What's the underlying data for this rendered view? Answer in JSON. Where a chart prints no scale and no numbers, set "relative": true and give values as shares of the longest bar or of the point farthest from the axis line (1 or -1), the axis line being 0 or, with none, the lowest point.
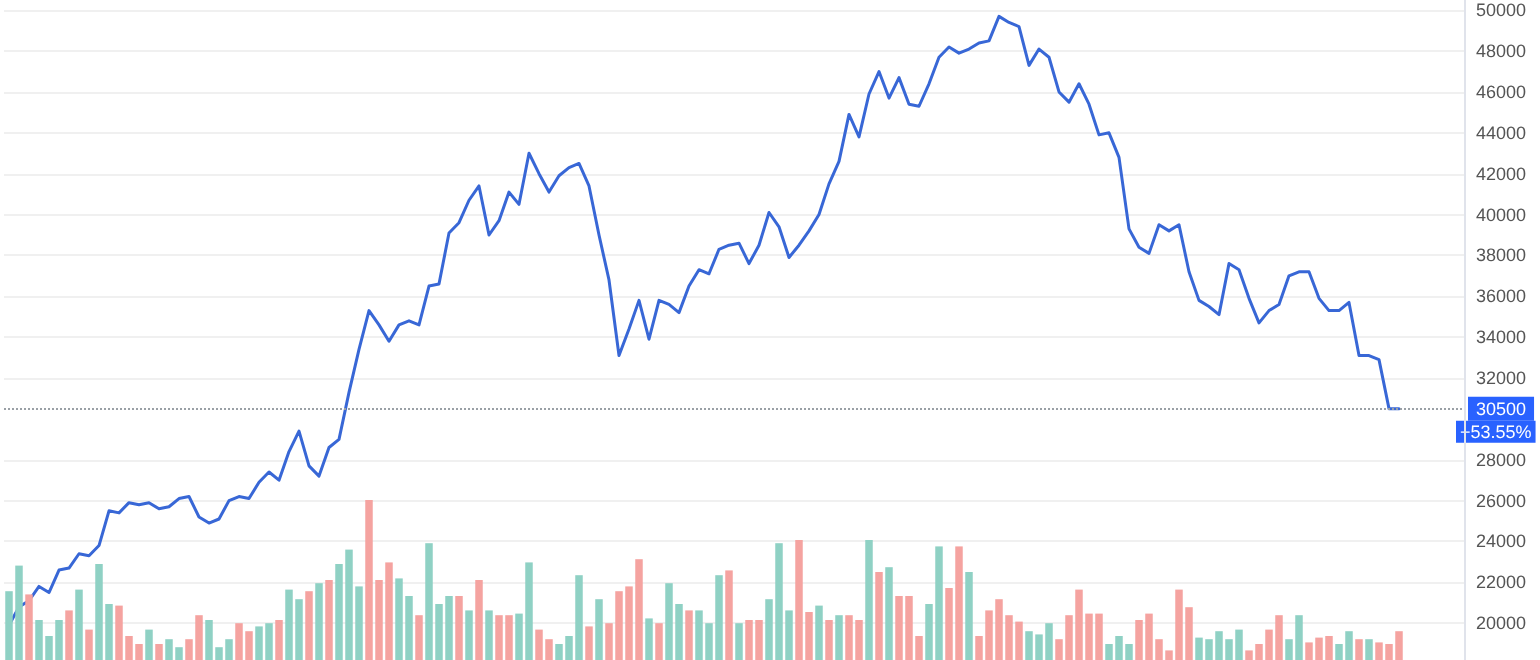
{
  "chart_data": [
    {
      "type": "line",
      "categories": [
        null,
        null,
        null,
        null,
        null,
        null,
        null,
        null,
        null,
        null,
        null,
        null,
        null,
        null,
        null,
        null,
        null,
        null,
        null,
        null,
        null,
        null,
        null,
        null,
        null,
        null,
        null,
        null,
        null,
        null,
        null,
        null,
        null,
        null,
        null,
        null,
        null,
        null,
        null,
        null,
        null,
        null,
        null,
        null,
        null,
        null,
        null,
        null,
        null,
        null,
        null,
        null,
        null,
        null,
        null,
        null,
        null,
        null,
        null,
        null,
        null,
        null,
        null,
        null,
        null,
        null,
        null,
        null,
        null,
        null,
        null,
        null,
        null,
        null,
        null,
        null,
        null,
        null,
        null,
        null,
        null,
        null,
        null,
        null,
        null,
        null,
        null,
        null,
        null,
        null,
        null,
        null,
        null,
        null,
        null,
        null,
        null,
        null,
        null,
        null,
        null,
        null,
        null,
        null,
        null,
        null,
        null,
        null,
        null,
        null,
        null,
        null,
        null,
        null,
        null,
        null,
        null,
        null,
        null,
        null,
        null,
        null,
        null,
        null,
        null,
        null,
        null,
        null,
        null,
        null,
        null,
        null,
        null,
        null,
        null,
        null,
        null,
        null,
        null,
        null,
        null,
        null,
        null,
        null,
        null,
        null
      ],
      "series": [
        {
          "color": "#3867d6",
          "values": [
            19900,
            20800,
            21100,
            21800,
            21500,
            22600,
            22700,
            23400,
            23300,
            23800,
            25500,
            25400,
            25900,
            25800,
            25900,
            25600,
            25700,
            26100,
            26200,
            25200,
            24900,
            25100,
            26000,
            26200,
            26100,
            26900,
            27400,
            27000,
            28400,
            29400,
            27700,
            27200,
            28600,
            29000,
            31300,
            33400,
            35300,
            34600,
            33800,
            34600,
            34800,
            34600,
            36500,
            36600,
            39100,
            39600,
            40700,
            41400,
            39000,
            39700,
            41100,
            40500,
            43000,
            42000,
            41100,
            41900,
            42300,
            42500,
            41400,
            39000,
            36800,
            33100,
            34400,
            35800,
            33900,
            35800,
            35600,
            35200,
            36500,
            37300,
            37100,
            38300,
            38500,
            38600,
            37600,
            38500,
            40100,
            39400,
            37900,
            38500,
            39200,
            40000,
            41500,
            42600,
            44900,
            43800,
            45900,
            47000,
            45700,
            46700,
            45400,
            45300,
            46400,
            47700,
            48200,
            47900,
            48100,
            48400,
            48500,
            49700,
            49400,
            49200,
            47300,
            48100,
            47700,
            46000,
            45500,
            46400,
            45400,
            43900,
            44000,
            42800,
            39300,
            38400,
            38100,
            39500,
            39200,
            39500,
            37200,
            35800,
            35500,
            35100,
            37600,
            37300,
            35900,
            34700,
            35300,
            35600,
            37000,
            37200,
            37200,
            35900,
            35300,
            35300,
            35700,
            33100,
            33100,
            32900,
            30500,
            30500,
            null,
            null,
            null,
            null,
            null,
            null
          ]
        }
      ],
      "ylim": [
        18200,
        50500
      ],
      "yticks": [
        20000,
        22000,
        24000,
        26000,
        28000,
        32000,
        34000,
        36000,
        38000,
        40000,
        42000,
        44000,
        46000,
        48000,
        50000
      ],
      "grid": "y",
      "line_style": "solid",
      "ref_lines": [
        {
          "axis": "y",
          "value": 30500,
          "label": "30500",
          "color": "#9aa0a6",
          "line_style": "dotted"
        }
      ],
      "annotations": [
        "+53.55%"
      ]
    },
    {
      "type": "bar",
      "relative": true,
      "categories": [
        null,
        null,
        null,
        null,
        null,
        null,
        null,
        null,
        null,
        null,
        null,
        null,
        null,
        null,
        null,
        null,
        null,
        null,
        null,
        null,
        null,
        null,
        null,
        null,
        null,
        null,
        null,
        null,
        null,
        null,
        null,
        null,
        null,
        null,
        null,
        null,
        null,
        null,
        null,
        null,
        null,
        null,
        null,
        null,
        null,
        null,
        null,
        null,
        null,
        null,
        null,
        null,
        null,
        null,
        null,
        null,
        null,
        null,
        null,
        null,
        null,
        null,
        null,
        null,
        null,
        null,
        null,
        null,
        null,
        null,
        null,
        null,
        null,
        null,
        null,
        null,
        null,
        null,
        null,
        null,
        null,
        null,
        null,
        null,
        null,
        null,
        null,
        null,
        null,
        null,
        null,
        null,
        null,
        null,
        null,
        null,
        null,
        null,
        null,
        null,
        null,
        null,
        null,
        null,
        null,
        null,
        null,
        null,
        null,
        null,
        null,
        null,
        null,
        null,
        null,
        null,
        null,
        null,
        null,
        null,
        null,
        null,
        null,
        null,
        null,
        null,
        null,
        null,
        null,
        null,
        null,
        null,
        null,
        null,
        null,
        null,
        null,
        null,
        null,
        null,
        null,
        null,
        null,
        null,
        null,
        null
      ],
      "colors": [
        "#8fd1c4",
        "#8fd1c4",
        "#f5a3a0",
        "#8fd1c4",
        "#8fd1c4",
        "#8fd1c4",
        "#f5a3a0",
        "#8fd1c4",
        "#f5a3a0",
        "#8fd1c4",
        "#8fd1c4",
        "#f5a3a0",
        "#f5a3a0",
        "#f5a3a0",
        "#8fd1c4",
        "#f5a3a0",
        "#8fd1c4",
        "#8fd1c4",
        "#f5a3a0",
        "#f5a3a0",
        "#8fd1c4",
        "#8fd1c4",
        "#8fd1c4",
        "#f5a3a0",
        "#f5a3a0",
        "#8fd1c4",
        "#8fd1c4",
        "#f5a3a0",
        "#8fd1c4",
        "#8fd1c4",
        "#f5a3a0",
        "#8fd1c4",
        "#f5a3a0",
        "#8fd1c4",
        "#8fd1c4",
        "#8fd1c4",
        "#f5a3a0",
        "#f5a3a0",
        "#f5a3a0",
        "#8fd1c4",
        "#8fd1c4",
        "#f5a3a0",
        "#8fd1c4",
        "#8fd1c4",
        "#8fd1c4",
        "#f5a3a0",
        "#8fd1c4",
        "#f5a3a0",
        "#8fd1c4",
        "#f5a3a0",
        "#f5a3a0",
        "#8fd1c4",
        "#8fd1c4",
        "#f5a3a0",
        "#f5a3a0",
        "#8fd1c4",
        "#8fd1c4",
        "#8fd1c4",
        "#f5a3a0",
        "#8fd1c4",
        "#f5a3a0",
        "#f5a3a0",
        "#f5a3a0",
        "#f5a3a0",
        "#8fd1c4",
        "#f5a3a0",
        "#8fd1c4",
        "#8fd1c4",
        "#f5a3a0",
        "#8fd1c4",
        "#8fd1c4",
        "#8fd1c4",
        "#f5a3a0",
        "#8fd1c4",
        "#f5a3a0",
        "#f5a3a0",
        "#8fd1c4",
        "#8fd1c4",
        "#8fd1c4",
        "#f5a3a0",
        "#f5a3a0",
        "#8fd1c4",
        "#f5a3a0",
        "#8fd1c4",
        "#f5a3a0",
        "#f5a3a0",
        "#8fd1c4",
        "#f5a3a0",
        "#8fd1c4",
        "#f5a3a0",
        "#f5a3a0",
        "#f5a3a0",
        "#8fd1c4",
        "#8fd1c4",
        "#f5a3a0",
        "#f5a3a0",
        "#8fd1c4",
        "#f5a3a0",
        "#f5a3a0",
        "#f5a3a0",
        "#f5a3a0",
        "#f5a3a0",
        "#8fd1c4",
        "#8fd1c4",
        "#8fd1c4",
        "#f5a3a0",
        "#f5a3a0",
        "#f5a3a0",
        "#f5a3a0",
        "#f5a3a0",
        "#8fd1c4",
        "#8fd1c4",
        "#8fd1c4",
        "#f5a3a0",
        "#f5a3a0",
        "#f5a3a0",
        "#f5a3a0",
        "#f5a3a0",
        "#f5a3a0",
        "#8fd1c4",
        "#8fd1c4",
        "#8fd1c4",
        "#8fd1c4",
        "#8fd1c4",
        "#f5a3a0",
        "#f5a3a0",
        "#f5a3a0",
        "#f5a3a0",
        "#8fd1c4",
        "#8fd1c4",
        "#f5a3a0",
        "#f5a3a0",
        "#f5a3a0",
        "#8fd1c4",
        "#8fd1c4",
        "#f5a3a0",
        "#8fd1c4",
        "#f5a3a0",
        "#f5a3a0",
        "#f5a3a0",
        null,
        null,
        null,
        null,
        null,
        null
      ],
      "values": [
        0.43,
        0.59,
        0.41,
        0.25,
        0.15,
        0.25,
        0.31,
        0.44,
        0.19,
        0.6,
        0.35,
        0.34,
        0.15,
        0.1,
        0.19,
        0.1,
        0.13,
        0.08,
        0.13,
        0.28,
        0.25,
        0.08,
        0.13,
        0.23,
        0.18,
        0.21,
        0.23,
        0.25,
        0.44,
        0.38,
        0.43,
        0.48,
        0.5,
        0.6,
        0.69,
        0.46,
        1,
        0.5,
        0.61,
        0.51,
        0.4,
        0.28,
        0.73,
        0.35,
        0.4,
        0.4,
        0.31,
        0.5,
        0.31,
        0.28,
        0.28,
        0.29,
        0.61,
        0.19,
        0.13,
        0.1,
        0.15,
        0.53,
        0.21,
        0.38,
        0.23,
        0.43,
        0.46,
        0.63,
        0.26,
        0.23,
        0.48,
        0.35,
        0.31,
        0.31,
        0.23,
        0.53,
        0.56,
        0.23,
        0.25,
        0.25,
        0.38,
        0.73,
        0.31,
        0.75,
        0.3,
        0.34,
        0.25,
        0.28,
        0.28,
        0.25,
        0.75,
        0.55,
        0.58,
        0.4,
        0.4,
        0.15,
        0.35,
        0.71,
        0.45,
        0.71,
        0.55,
        0.15,
        0.31,
        0.38,
        0.28,
        0.24,
        0.18,
        0.16,
        0.23,
        0.13,
        0.28,
        0.44,
        0.29,
        0.29,
        0.1,
        0.15,
        0.1,
        0.25,
        0.29,
        0.13,
        0.06,
        0.44,
        0.33,
        0.14,
        0.13,
        0.18,
        0.13,
        0.19,
        0.06,
        0.1,
        0.19,
        0.28,
        0.13,
        0.28,
        0.11,
        0.14,
        0.15,
        0.1,
        0.18,
        0.13,
        0.13,
        0.11,
        0.1,
        0.18,
        null,
        null,
        null,
        null,
        null,
        null
      ]
    }
  ]
}
